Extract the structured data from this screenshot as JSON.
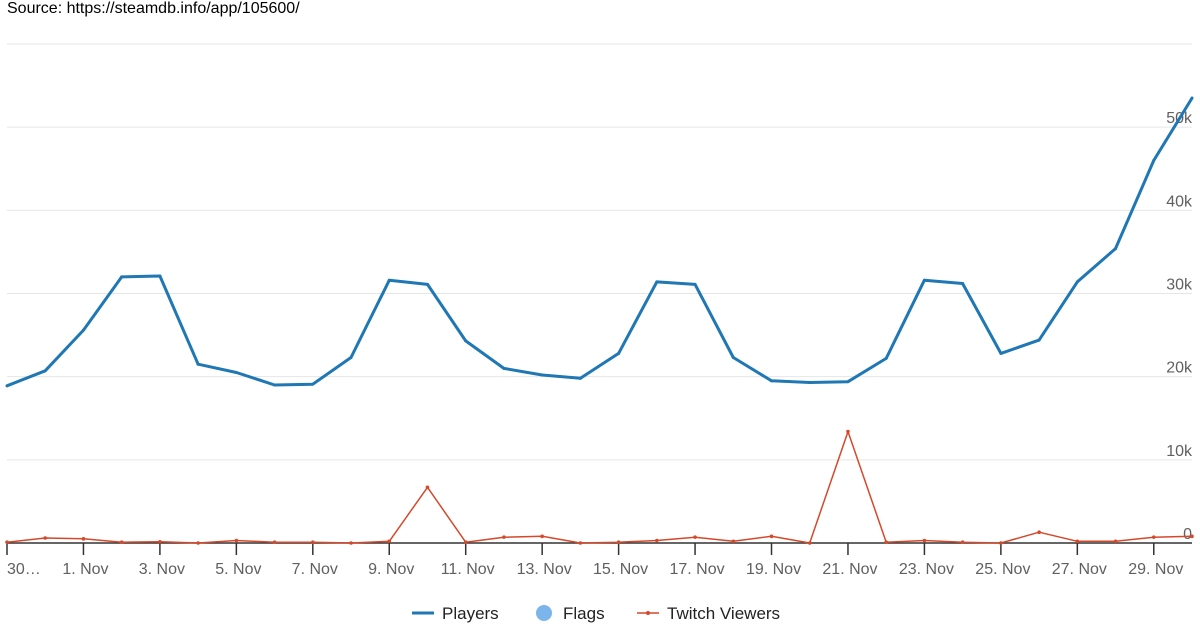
{
  "source_label": "Source: https://steamdb.info/app/105600/",
  "chart_data": {
    "type": "line",
    "xlabel": "",
    "ylabel": "",
    "ylim": [
      0,
      60000
    ],
    "yticks": [
      0,
      10000,
      20000,
      30000,
      40000,
      50000
    ],
    "ytick_labels": [
      "0",
      "10k",
      "20k",
      "30k",
      "40k",
      "50k"
    ],
    "x_start": "2023-10-30",
    "xtick_labels": [
      "30…",
      "1. Nov",
      "3. Nov",
      "5. Nov",
      "7. Nov",
      "9. Nov",
      "11. Nov",
      "13. Nov",
      "15. Nov",
      "17. Nov",
      "19. Nov",
      "21. Nov",
      "23. Nov",
      "25. Nov",
      "27. Nov",
      "29. Nov"
    ],
    "grid": true,
    "legend_position": "bottom",
    "series": [
      {
        "name": "Players",
        "color": "#1f77b4",
        "values": [
          18900,
          20700,
          25600,
          32000,
          32100,
          21500,
          20500,
          19000,
          19100,
          22300,
          31600,
          31100,
          24300,
          21000,
          20200,
          19800,
          22800,
          31400,
          31100,
          22300,
          19500,
          19300,
          19400,
          22200,
          31600,
          31200,
          22800,
          24400,
          31400,
          35400,
          46000,
          53500
        ]
      },
      {
        "name": "Flags",
        "color": "#7cb5ec",
        "values": []
      },
      {
        "name": "Twitch Viewers",
        "color": "#d6482a",
        "values": [
          100,
          600,
          500,
          100,
          150,
          0,
          300,
          100,
          100,
          0,
          200,
          6700,
          100,
          700,
          800,
          0,
          100,
          300,
          700,
          200,
          800,
          0,
          13400,
          100,
          300,
          100,
          0,
          1300,
          200,
          200,
          700,
          800
        ]
      }
    ]
  }
}
